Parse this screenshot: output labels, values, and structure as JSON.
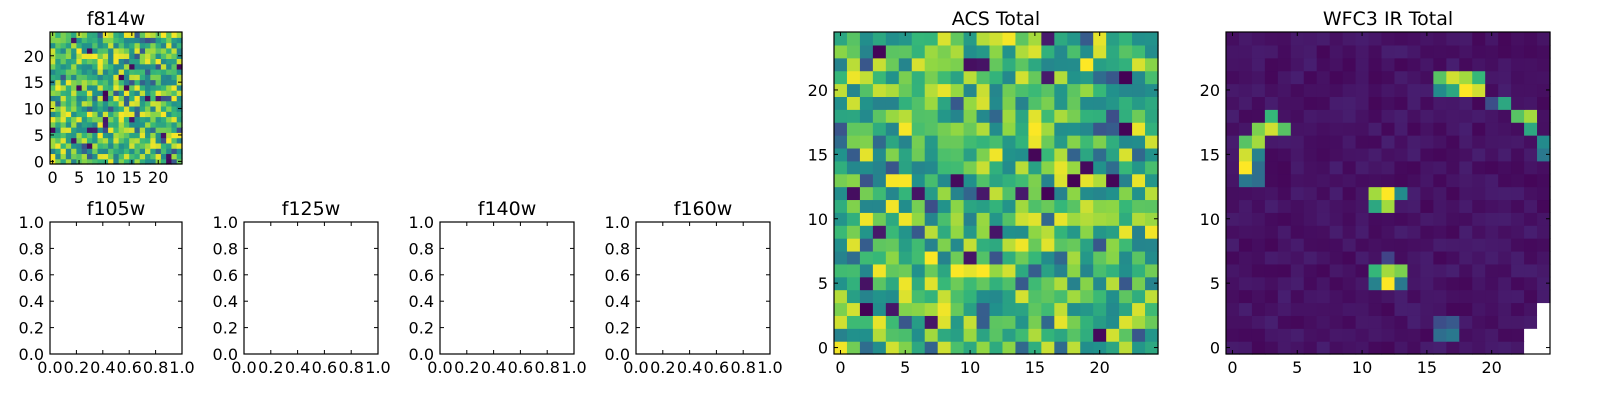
{
  "chart_data": [
    {
      "type": "heatmap",
      "title": "f814w",
      "x_ticks": [
        0,
        5,
        10,
        15,
        20
      ],
      "y_ticks": [
        0,
        5,
        10,
        15,
        20
      ],
      "colormap": "viridis",
      "grid_size": [
        25,
        25
      ],
      "pattern": "uniform-noise-high"
    },
    {
      "type": "heatmap",
      "title": "f105w",
      "x_ticks": [
        "0.0",
        "0.2",
        "0.4",
        "0.6",
        "0.8",
        "1.0"
      ],
      "y_ticks": [
        "0.0",
        "0.2",
        "0.4",
        "0.6",
        "0.8",
        "1.0"
      ],
      "empty": true
    },
    {
      "type": "heatmap",
      "title": "f125w",
      "x_ticks": [
        "0.0",
        "0.2",
        "0.4",
        "0.6",
        "0.8",
        "1.0"
      ],
      "y_ticks": [
        "0.0",
        "0.2",
        "0.4",
        "0.6",
        "0.8",
        "1.0"
      ],
      "empty": true
    },
    {
      "type": "heatmap",
      "title": "f140w",
      "x_ticks": [
        "0.0",
        "0.2",
        "0.4",
        "0.6",
        "0.8",
        "1.0"
      ],
      "y_ticks": [
        "0.0",
        "0.2",
        "0.4",
        "0.6",
        "0.8",
        "1.0"
      ],
      "empty": true
    },
    {
      "type": "heatmap",
      "title": "f160w",
      "x_ticks": [
        "0.0",
        "0.2",
        "0.4",
        "0.6",
        "0.8",
        "1.0"
      ],
      "y_ticks": [
        "0.0",
        "0.2",
        "0.4",
        "0.6",
        "0.8",
        "1.0"
      ],
      "empty": true
    },
    {
      "type": "heatmap",
      "title": "ACS Total",
      "x_ticks": [
        0,
        5,
        10,
        15,
        20
      ],
      "y_ticks": [
        0,
        5,
        10,
        15,
        20
      ],
      "colormap": "viridis",
      "grid_size": [
        25,
        25
      ],
      "pattern": "uniform-noise-high"
    },
    {
      "type": "heatmap",
      "title": "WFC3 IR Total",
      "x_ticks": [
        0,
        5,
        10,
        15,
        20
      ],
      "y_ticks": [
        0,
        5,
        10,
        15,
        20
      ],
      "colormap": "viridis",
      "grid_size": [
        25,
        25
      ],
      "pattern": "low-background-with-bright-sources",
      "bright_cells": [
        {
          "x": 16,
          "y": 21,
          "v": 0.8
        },
        {
          "x": 17,
          "y": 21,
          "v": 0.95
        },
        {
          "x": 18,
          "y": 21,
          "v": 0.9
        },
        {
          "x": 19,
          "y": 21,
          "v": 0.75
        },
        {
          "x": 16,
          "y": 20,
          "v": 0.6
        },
        {
          "x": 17,
          "y": 20,
          "v": 0.7
        },
        {
          "x": 18,
          "y": 20,
          "v": 1.0
        },
        {
          "x": 19,
          "y": 20,
          "v": 0.95
        },
        {
          "x": 20,
          "y": 19,
          "v": 0.3
        },
        {
          "x": 21,
          "y": 19,
          "v": 0.7
        },
        {
          "x": 22,
          "y": 18,
          "v": 0.8
        },
        {
          "x": 23,
          "y": 18,
          "v": 0.9
        },
        {
          "x": 23,
          "y": 17,
          "v": 0.7
        },
        {
          "x": 24,
          "y": 16,
          "v": 0.6
        },
        {
          "x": 24,
          "y": 15,
          "v": 0.5
        },
        {
          "x": 3,
          "y": 18,
          "v": 0.75
        },
        {
          "x": 4,
          "y": 17,
          "v": 0.8
        },
        {
          "x": 2,
          "y": 17,
          "v": 0.85
        },
        {
          "x": 3,
          "y": 17,
          "v": 0.95
        },
        {
          "x": 1,
          "y": 16,
          "v": 0.8
        },
        {
          "x": 2,
          "y": 16,
          "v": 0.9
        },
        {
          "x": 1,
          "y": 15,
          "v": 0.95
        },
        {
          "x": 2,
          "y": 15,
          "v": 0.55
        },
        {
          "x": 1,
          "y": 14,
          "v": 1.0
        },
        {
          "x": 2,
          "y": 14,
          "v": 0.45
        },
        {
          "x": 1,
          "y": 13,
          "v": 0.5
        },
        {
          "x": 2,
          "y": 13,
          "v": 0.45
        },
        {
          "x": 11,
          "y": 12,
          "v": 0.9
        },
        {
          "x": 12,
          "y": 12,
          "v": 1.0
        },
        {
          "x": 13,
          "y": 12,
          "v": 0.6
        },
        {
          "x": 11,
          "y": 11,
          "v": 0.7
        },
        {
          "x": 12,
          "y": 11,
          "v": 0.9
        },
        {
          "x": 11,
          "y": 6,
          "v": 0.75
        },
        {
          "x": 12,
          "y": 6,
          "v": 0.9
        },
        {
          "x": 13,
          "y": 6,
          "v": 0.85
        },
        {
          "x": 11,
          "y": 5,
          "v": 0.55
        },
        {
          "x": 12,
          "y": 5,
          "v": 1.0
        },
        {
          "x": 13,
          "y": 5,
          "v": 0.5
        },
        {
          "x": 12,
          "y": 7,
          "v": 0.25
        },
        {
          "x": 16,
          "y": 1,
          "v": 0.45
        },
        {
          "x": 17,
          "y": 1,
          "v": 0.5
        },
        {
          "x": 16,
          "y": 2,
          "v": 0.3
        },
        {
          "x": 17,
          "y": 2,
          "v": 0.35
        }
      ],
      "masked_cells": [
        {
          "x": 23,
          "y": 0
        },
        {
          "x": 24,
          "y": 0
        },
        {
          "x": 23,
          "y": 1
        },
        {
          "x": 24,
          "y": 1
        },
        {
          "x": 24,
          "y": 2
        },
        {
          "x": 24,
          "y": 3
        }
      ]
    }
  ]
}
